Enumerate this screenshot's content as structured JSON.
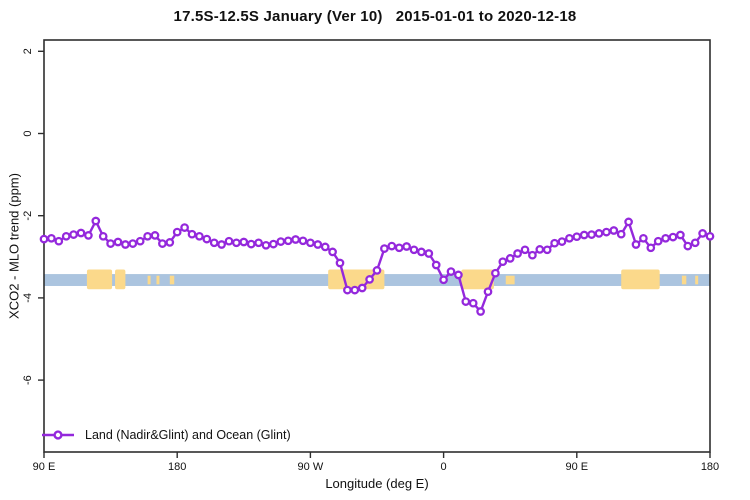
{
  "title": "17.5S-12.5S January (Ver 10)   2015-01-01 to 2020-12-18",
  "chart_data": {
    "type": "line",
    "title": "17.5S-12.5S January (Ver 10)   2015-01-01 to 2020-12-18",
    "xlabel": "Longitude (deg E)",
    "ylabel": "XCO2 - MLO trend (ppm)",
    "x_range_deg": [
      90,
      540
    ],
    "x_ticks": [
      {
        "deg": 90,
        "label": "90 E"
      },
      {
        "deg": 180,
        "label": "180"
      },
      {
        "deg": 270,
        "label": "90 W"
      },
      {
        "deg": 360,
        "label": "0"
      },
      {
        "deg": 450,
        "label": "90 E"
      },
      {
        "deg": 540,
        "label": "180"
      }
    ],
    "y_ticks": [
      2,
      0,
      -2,
      -4,
      -6
    ],
    "ylim": [
      2.3,
      -7.7
    ],
    "grid": "off",
    "legend": {
      "position": "bottom-left",
      "entries": [
        {
          "label": "Land (Nadir&Glint) and Ocean (Glint)",
          "color": "#9428DC",
          "marker": "open-circle"
        }
      ]
    },
    "map_strip": {
      "description": "latitude-band land/ocean strip",
      "ocean_color": "#ABC4DF",
      "land_color": "#FBD98B",
      "ocean_ppm": [
        -3.42,
        -3.71
      ],
      "land_ppm": [
        -3.31,
        -3.79
      ],
      "island_ppm": [
        -3.46,
        -3.67
      ],
      "land_patches_deg": [
        [
          119,
          136
        ],
        [
          138,
          145
        ],
        [
          282,
          320
        ],
        [
          372,
          394
        ],
        [
          480,
          506
        ]
      ],
      "island_patches_deg": [
        [
          160,
          162
        ],
        [
          166,
          168
        ],
        [
          175,
          178
        ],
        [
          402,
          408
        ],
        [
          521,
          524
        ],
        [
          530,
          532
        ]
      ]
    },
    "series": [
      {
        "name": "Land (Nadir&Glint) and Ocean (Glint)",
        "color": "#9428DC",
        "marker": "open-circle",
        "points": [
          [
            90,
            -2.57
          ],
          [
            95,
            -2.55
          ],
          [
            100,
            -2.62
          ],
          [
            105,
            -2.5
          ],
          [
            110,
            -2.46
          ],
          [
            115,
            -2.42
          ],
          [
            120,
            -2.48
          ],
          [
            125,
            -2.13
          ],
          [
            130,
            -2.5
          ],
          [
            135,
            -2.68
          ],
          [
            140,
            -2.64
          ],
          [
            145,
            -2.7
          ],
          [
            150,
            -2.68
          ],
          [
            155,
            -2.62
          ],
          [
            160,
            -2.5
          ],
          [
            165,
            -2.48
          ],
          [
            170,
            -2.68
          ],
          [
            175,
            -2.65
          ],
          [
            180,
            -2.4
          ],
          [
            185,
            -2.29
          ],
          [
            190,
            -2.45
          ],
          [
            195,
            -2.5
          ],
          [
            200,
            -2.57
          ],
          [
            205,
            -2.66
          ],
          [
            210,
            -2.7
          ],
          [
            215,
            -2.62
          ],
          [
            220,
            -2.66
          ],
          [
            225,
            -2.64
          ],
          [
            230,
            -2.69
          ],
          [
            235,
            -2.66
          ],
          [
            240,
            -2.72
          ],
          [
            245,
            -2.69
          ],
          [
            250,
            -2.63
          ],
          [
            255,
            -2.61
          ],
          [
            260,
            -2.58
          ],
          [
            265,
            -2.61
          ],
          [
            270,
            -2.66
          ],
          [
            275,
            -2.7
          ],
          [
            280,
            -2.76
          ],
          [
            285,
            -2.88
          ],
          [
            290,
            -3.15
          ],
          [
            295,
            -3.81
          ],
          [
            300,
            -3.81
          ],
          [
            305,
            -3.76
          ],
          [
            310,
            -3.55
          ],
          [
            315,
            -3.33
          ],
          [
            320,
            -2.8
          ],
          [
            325,
            -2.74
          ],
          [
            330,
            -2.78
          ],
          [
            335,
            -2.75
          ],
          [
            340,
            -2.83
          ],
          [
            345,
            -2.88
          ],
          [
            350,
            -2.92
          ],
          [
            355,
            -3.2
          ],
          [
            360,
            -3.56
          ],
          [
            365,
            -3.36
          ],
          [
            370,
            -3.44
          ],
          [
            375,
            -4.09
          ],
          [
            380,
            -4.13
          ],
          [
            385,
            -4.33
          ],
          [
            390,
            -3.85
          ],
          [
            395,
            -3.4
          ],
          [
            400,
            -3.12
          ],
          [
            405,
            -3.04
          ],
          [
            410,
            -2.92
          ],
          [
            415,
            -2.83
          ],
          [
            420,
            -2.96
          ],
          [
            425,
            -2.82
          ],
          [
            430,
            -2.83
          ],
          [
            435,
            -2.67
          ],
          [
            440,
            -2.63
          ],
          [
            445,
            -2.55
          ],
          [
            450,
            -2.51
          ],
          [
            455,
            -2.47
          ],
          [
            460,
            -2.46
          ],
          [
            465,
            -2.43
          ],
          [
            470,
            -2.4
          ],
          [
            475,
            -2.36
          ],
          [
            480,
            -2.45
          ],
          [
            485,
            -2.15
          ],
          [
            490,
            -2.7
          ],
          [
            495,
            -2.55
          ],
          [
            500,
            -2.78
          ],
          [
            505,
            -2.62
          ],
          [
            510,
            -2.55
          ],
          [
            515,
            -2.52
          ],
          [
            520,
            -2.47
          ],
          [
            525,
            -2.74
          ],
          [
            530,
            -2.66
          ],
          [
            535,
            -2.43
          ],
          [
            540,
            -2.5
          ]
        ]
      }
    ]
  }
}
